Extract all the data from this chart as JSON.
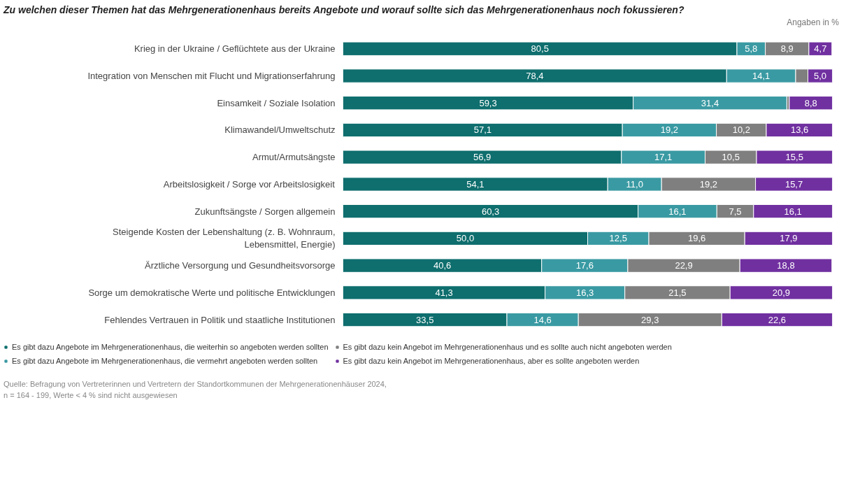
{
  "chart_data": {
    "type": "bar",
    "orientation": "horizontal",
    "stacked": true,
    "title": "Zu welchen dieser Themen hat das Mehrgenerationenhaus bereits Angebote und worauf sollte sich das Mehrgenerationenhaus noch fokussieren?",
    "subtitle": "Angaben in %",
    "categories": [
      "Krieg in der Ukraine / Geflüchtete aus der Ukraine",
      "Integration von Menschen mit Flucht und Migrationserfahrung",
      "Einsamkeit / Soziale Isolation",
      "Klimawandel/Umweltschutz",
      "Armut/Armutsängste",
      "Arbeitslosigkeit / Sorge vor Arbeitslosigkeit",
      "Zukunftsängste / Sorgen allgemein",
      "Steigende Kosten der Lebenshaltung (z. B. Wohnraum, Lebensmittel, Energie)",
      "Ärztliche Versorgung und Gesundheitsvorsorge",
      "Sorge um demokratische Werte und politische Entwicklungen",
      "Fehlendes Vertrauen in Politik und staatliche Institutionen"
    ],
    "series": [
      {
        "name": "Es gibt dazu Angebote im Mehrgenerationenhaus, die weiterhin so angeboten werden sollten",
        "color": "#0f6e6e",
        "values": [
          80.5,
          78.4,
          59.3,
          57.1,
          56.9,
          54.1,
          60.3,
          50.0,
          40.6,
          41.3,
          33.5
        ],
        "value_labels": [
          "80,5",
          "78,4",
          "59,3",
          "57,1",
          "56,9",
          "54,1",
          "60,3",
          "50,0",
          "40,6",
          "41,3",
          "33,5"
        ]
      },
      {
        "name": "Es gibt dazu Angebote im Mehrgenerationenhaus, die vermehrt angeboten werden sollten",
        "color": "#3a9aa3",
        "values": [
          5.8,
          14.1,
          31.4,
          19.2,
          17.1,
          11.0,
          16.1,
          12.5,
          17.6,
          16.3,
          14.6
        ],
        "value_labels": [
          "5,8",
          "14,1",
          "31,4",
          "19,2",
          "17,1",
          "11,0",
          "16,1",
          "12,5",
          "17,6",
          "16,3",
          "14,6"
        ]
      },
      {
        "name": "Es gibt dazu kein Angebot im Mehrgenerationenhaus und es sollte auch nicht angeboten werden",
        "color": "#7f7f7f",
        "values": [
          8.9,
          2.5,
          0.5,
          10.2,
          10.5,
          19.2,
          7.5,
          19.6,
          22.9,
          21.5,
          29.3
        ],
        "value_labels": [
          "8,9",
          null,
          null,
          "10,2",
          "10,5",
          "19,2",
          "7,5",
          "19,6",
          "22,9",
          "21,5",
          "29,3"
        ]
      },
      {
        "name": "Es gibt dazu kein Angebot im Mehrgenerationenhaus, aber es sollte angeboten werden",
        "color": "#7030a0",
        "values": [
          4.7,
          5.0,
          8.8,
          13.6,
          15.5,
          15.7,
          16.1,
          17.9,
          18.8,
          20.9,
          22.6
        ],
        "value_labels": [
          "4,7",
          "5,0",
          "8,8",
          "13,6",
          "15,5",
          "15,7",
          "16,1",
          "17,9",
          "18,8",
          "20,9",
          "22,6"
        ]
      }
    ],
    "xlim": [
      0,
      100
    ],
    "tick_labels": false,
    "grid": false,
    "legend": "bottom",
    "annotations": [
      "Quelle: Befragung von Vertreterinnen und Vertretern der Standortkommunen der Mehrgenerationenhäuser 2024,",
      "n = 164 - 199, Werte < 4 % sind nicht ausgewiesen"
    ]
  }
}
